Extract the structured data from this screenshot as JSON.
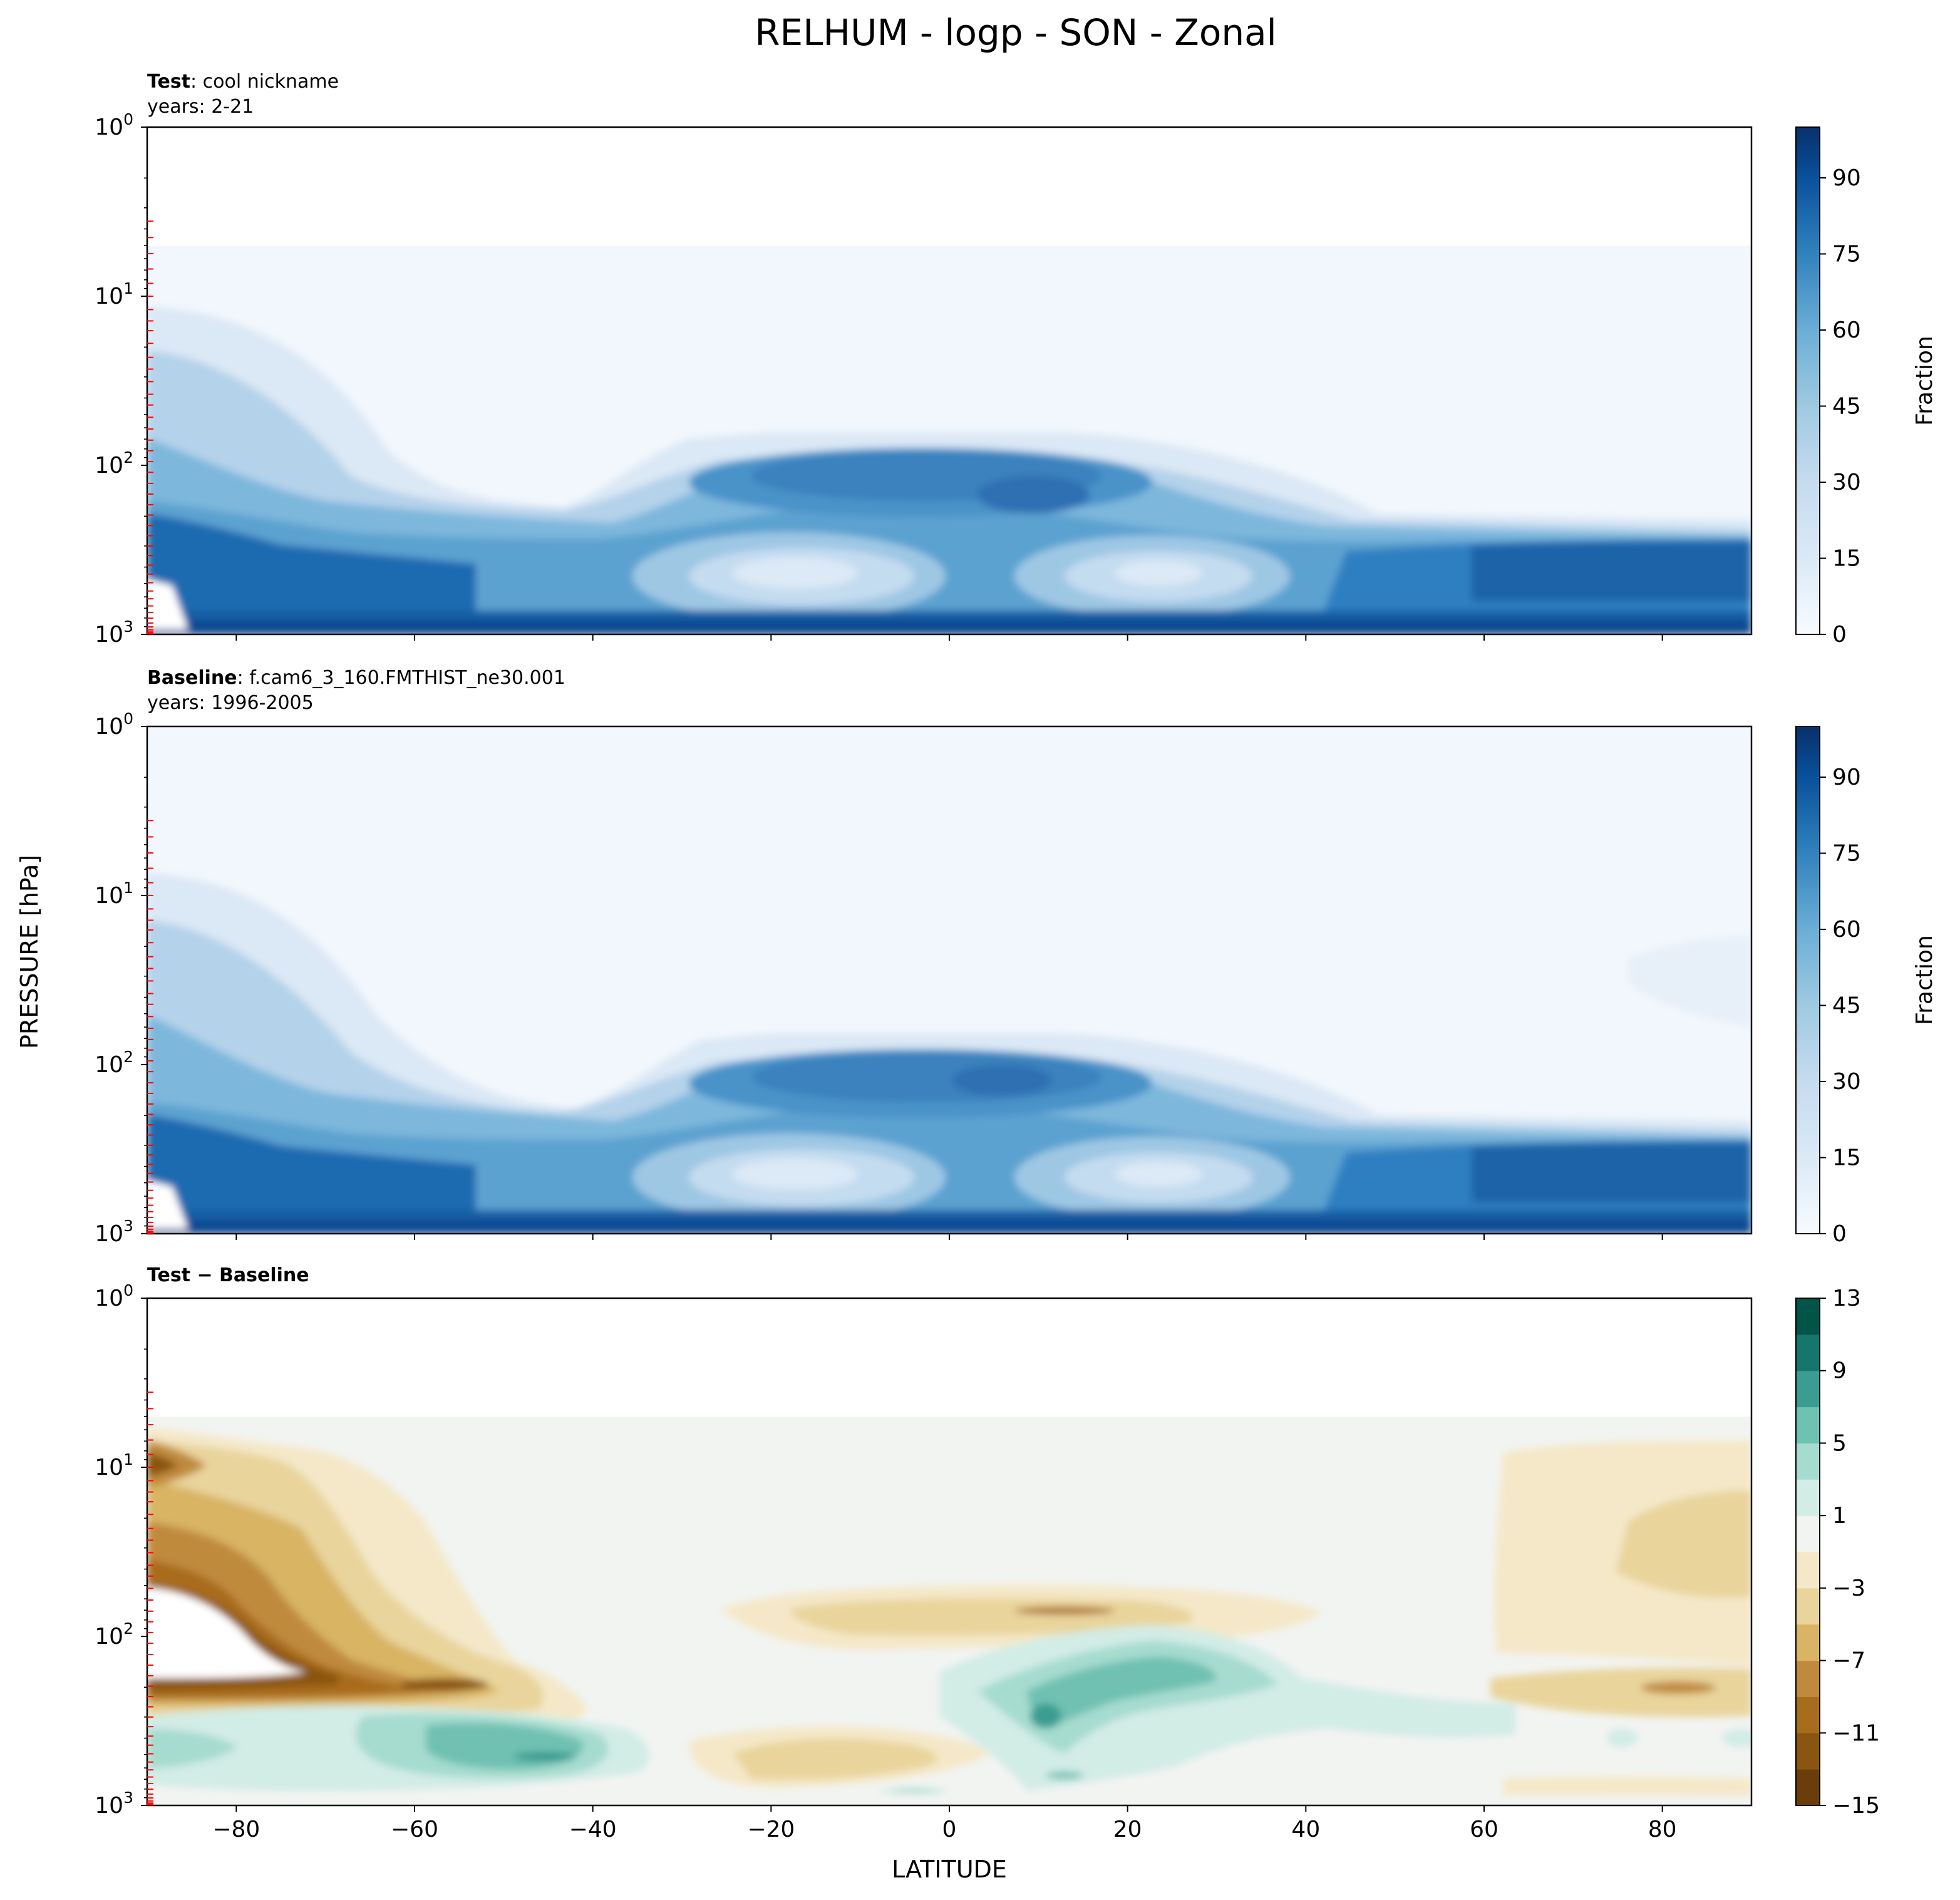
{
  "figure": {
    "title": "RELHUM - logp - SON - Zonal",
    "shared_ylabel": "PRESSURE [hPa]",
    "shared_xlabel": "LATITUDE"
  },
  "chart_data": [
    {
      "type": "heatmap",
      "panel": "test",
      "header_bold": "Test",
      "header_rest": ": cool nickname",
      "subheader": "years: 2-21",
      "xlim": [
        -90,
        90
      ],
      "xticks": [
        "−80",
        "−60",
        "−40",
        "−20",
        "0",
        "20",
        "40",
        "60",
        "80"
      ],
      "yscale": "log",
      "yticks": [
        "10^0",
        "10^1",
        "10^2",
        "10^3"
      ],
      "colorbar": {
        "label": "Fraction",
        "ticks": [
          "0",
          "15",
          "30",
          "45",
          "60",
          "75",
          "90"
        ],
        "range": [
          0,
          100
        ],
        "levels": 20,
        "colormap": "Blues"
      }
    },
    {
      "type": "heatmap",
      "panel": "baseline",
      "header_bold": "Baseline",
      "header_rest": ": f.cam6_3_160.FMTHIST_ne30.001",
      "subheader": "years: 1996-2005",
      "xlim": [
        -90,
        90
      ],
      "xticks": [
        "−80",
        "−60",
        "−40",
        "−20",
        "0",
        "20",
        "40",
        "60",
        "80"
      ],
      "yscale": "log",
      "yticks": [
        "10^0",
        "10^1",
        "10^2",
        "10^3"
      ],
      "colorbar": {
        "label": "Fraction",
        "ticks": [
          "0",
          "15",
          "30",
          "45",
          "60",
          "75",
          "90"
        ],
        "range": [
          0,
          100
        ],
        "levels": 20,
        "colormap": "Blues"
      }
    },
    {
      "type": "heatmap",
      "panel": "difference",
      "header_bold": "Test − Baseline",
      "header_rest": "",
      "subheader": "",
      "xlim": [
        -90,
        90
      ],
      "xticks": [
        "−80",
        "−60",
        "−40",
        "−20",
        "0",
        "20",
        "40",
        "60",
        "80"
      ],
      "yscale": "log",
      "yticks": [
        "10^0",
        "10^1",
        "10^2",
        "10^3"
      ],
      "colorbar": {
        "label": "",
        "ticks": [
          "13",
          "9",
          "5",
          "1",
          "−3",
          "−7",
          "−11",
          "−15"
        ],
        "range": [
          -15,
          13
        ],
        "levels": 14,
        "colormap": "BrBG"
      }
    }
  ],
  "colors": {
    "blues": [
      "#f7fbff",
      "#e3eef9",
      "#cfe1f2",
      "#b5d4e9",
      "#93c4de",
      "#6aaed6",
      "#4a98c9",
      "#2e7ebc",
      "#1764ab",
      "#084a91",
      "#08306b"
    ],
    "brbg": [
      "#6b3d0a",
      "#8a5510",
      "#a86c1d",
      "#c08a3d",
      "#d8b464",
      "#e9d49b",
      "#f4e8c8",
      "#f2f4f2",
      "#d2ece6",
      "#a6dccf",
      "#6fc1b2",
      "#3b9c91",
      "#15766c",
      "#025348"
    ],
    "outside_ticks": "#ff0000"
  }
}
